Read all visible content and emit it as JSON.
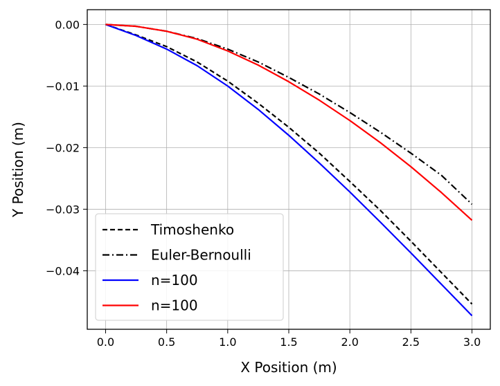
{
  "chart_data": {
    "type": "line",
    "title": "",
    "xlabel": "X Position (m)",
    "ylabel": "Y Position (m)",
    "xlim": [
      -0.15,
      3.15
    ],
    "ylim": [
      -0.0495,
      0.0024
    ],
    "xticks": [
      0.0,
      0.5,
      1.0,
      1.5,
      2.0,
      2.5,
      3.0
    ],
    "xtick_labels": [
      "0.0",
      "0.5",
      "1.0",
      "1.5",
      "2.0",
      "2.5",
      "3.0"
    ],
    "yticks": [
      0.0,
      -0.01,
      -0.02,
      -0.03,
      -0.04
    ],
    "ytick_labels": [
      "0.00",
      "−0.01",
      "−0.02",
      "−0.03",
      "−0.04"
    ],
    "grid": true,
    "legend_position": "lower-left",
    "series": [
      {
        "name": "Timoshenko",
        "color": "#000000",
        "style": "dashed",
        "x": [
          0.0,
          0.25,
          0.5,
          0.75,
          1.0,
          1.25,
          1.5,
          1.75,
          2.0,
          2.25,
          2.5,
          2.75,
          3.0
        ],
        "y": [
          0.0,
          -0.0017,
          -0.0036,
          -0.0061,
          -0.0092,
          -0.0128,
          -0.0167,
          -0.0209,
          -0.0255,
          -0.0302,
          -0.0352,
          -0.0403,
          -0.0454
        ]
      },
      {
        "name": "Euler-Bernoulli",
        "color": "#000000",
        "style": "dashdot",
        "x": [
          0.0,
          0.25,
          0.5,
          0.75,
          1.0,
          1.25,
          1.5,
          1.75,
          2.0,
          2.25,
          2.5,
          2.75,
          3.0
        ],
        "y": [
          0.0,
          -0.0003,
          -0.0011,
          -0.0023,
          -0.004,
          -0.0061,
          -0.0086,
          -0.0113,
          -0.0143,
          -0.0175,
          -0.0209,
          -0.0245,
          -0.0292
        ]
      },
      {
        "name": "n=100",
        "color": "#0000ff",
        "style": "solid",
        "x": [
          0.0,
          0.25,
          0.5,
          0.75,
          1.0,
          1.25,
          1.5,
          1.75,
          2.0,
          2.25,
          2.5,
          2.75,
          3.0
        ],
        "y": [
          0.0,
          -0.0018,
          -0.004,
          -0.0067,
          -0.01,
          -0.0138,
          -0.018,
          -0.0225,
          -0.0272,
          -0.0321,
          -0.0371,
          -0.0422,
          -0.0473
        ]
      },
      {
        "name": "n=100",
        "color": "#ff0000",
        "style": "solid",
        "x": [
          0.0,
          0.25,
          0.5,
          0.75,
          1.0,
          1.25,
          1.5,
          1.75,
          2.0,
          2.25,
          2.5,
          2.75,
          3.0
        ],
        "y": [
          0.0,
          -0.0003,
          -0.0011,
          -0.0024,
          -0.0043,
          -0.0066,
          -0.0093,
          -0.0123,
          -0.0156,
          -0.0192,
          -0.0231,
          -0.0273,
          -0.0318
        ]
      }
    ]
  }
}
